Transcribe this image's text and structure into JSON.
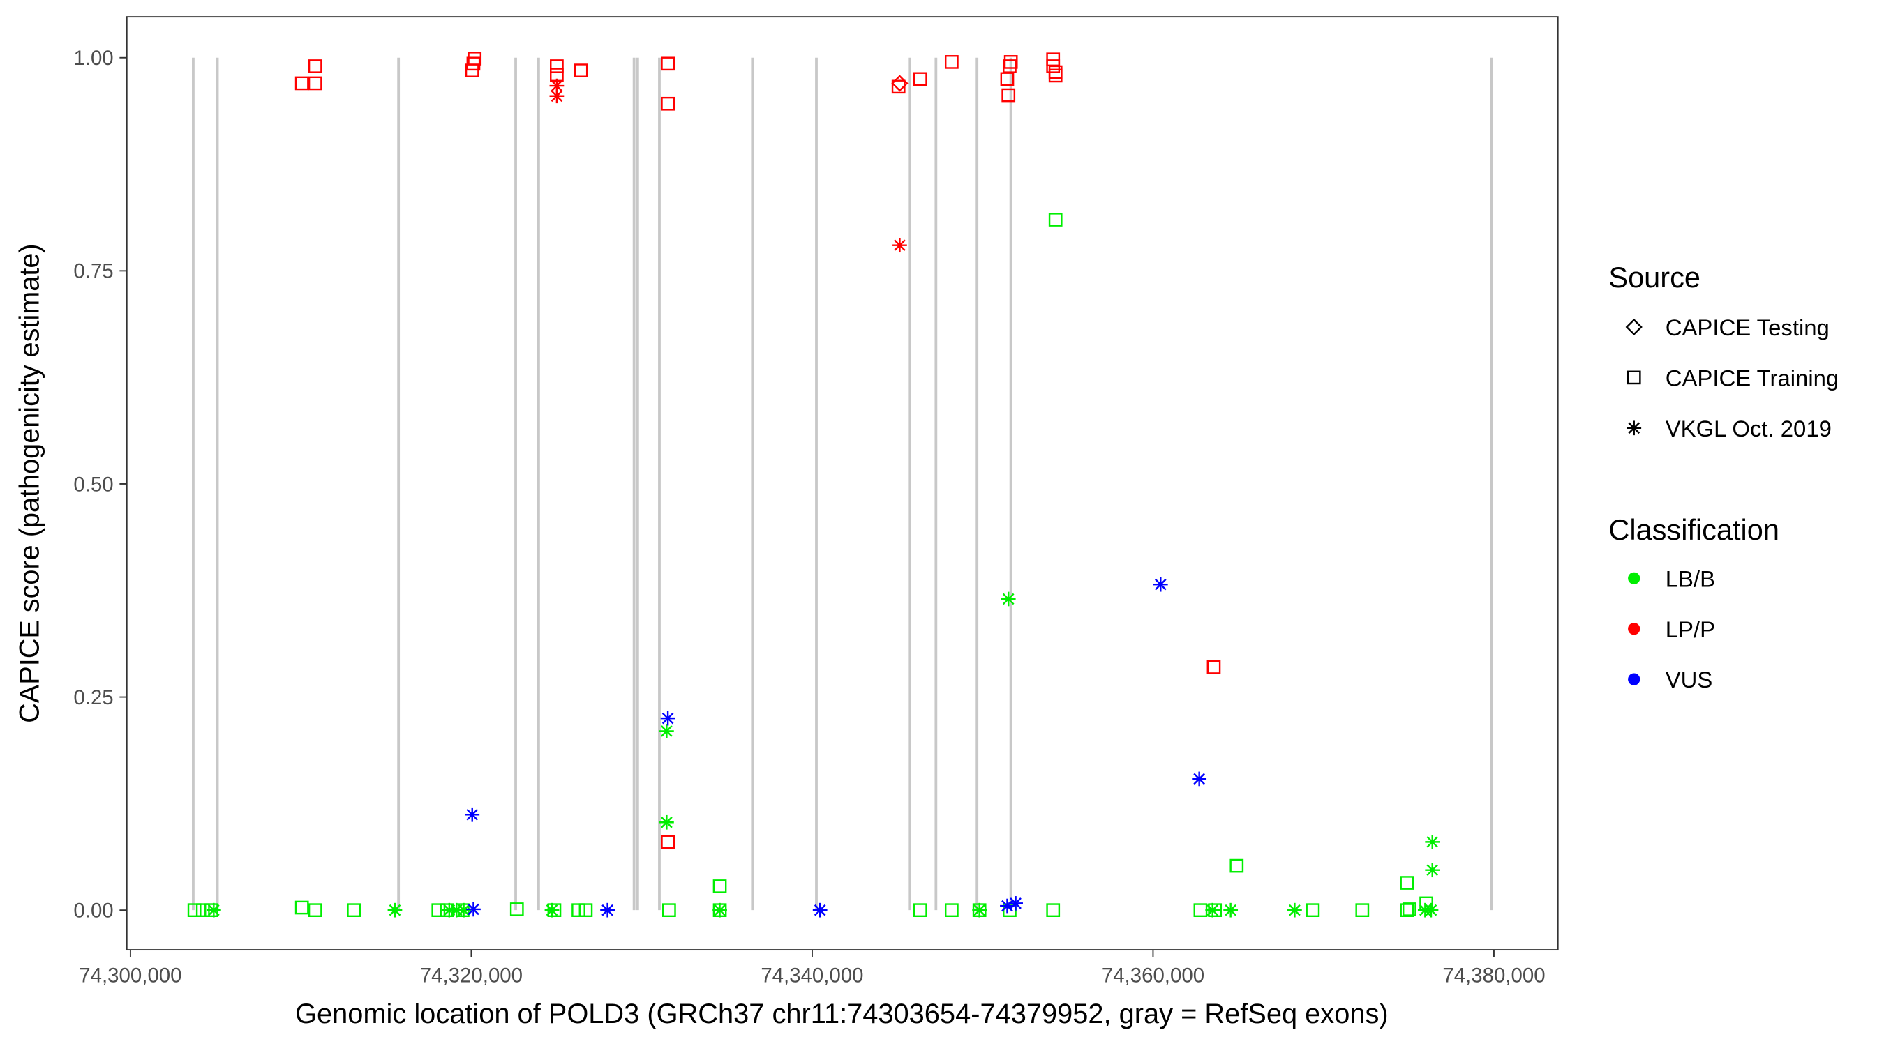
{
  "chart_data": {
    "type": "scatter",
    "title": "",
    "xlabel": "Genomic location of POLD3 (GRCh37 chr11:74303654-74379952, gray = RefSeq exons)",
    "ylabel": "CAPICE score (pathogenicity estimate)",
    "xlim": [
      74299800,
      74383800
    ],
    "ylim": [
      -0.045,
      1.05
    ],
    "x_ticks": [
      74300000,
      74320000,
      74340000,
      74360000,
      74380000
    ],
    "x_tick_labels": [
      "74,300,000",
      "74,320,000",
      "74,340,000",
      "74,360,000",
      "74,380,000"
    ],
    "y_ticks": [
      0,
      0.25,
      0.5,
      0.75,
      1.0
    ],
    "y_tick_labels": [
      "0.00",
      "0.25",
      "0.50",
      "0.75",
      "1.00"
    ],
    "grid": false,
    "exons": [
      74303685,
      74305102,
      74315731,
      74322604,
      74323950,
      74329548,
      74329761,
      74331036,
      74336493,
      74340248,
      74345704,
      74347263,
      74349672,
      74351656,
      74379858
    ],
    "exon_color": "#c8c8c8",
    "legend_placement": "right",
    "legend": {
      "source_title": "Source",
      "sources": [
        "CAPICE Testing",
        "CAPICE Training",
        "VKGL Oct. 2019"
      ],
      "source_shapes": [
        "diamond",
        "square",
        "asterisk"
      ],
      "classification_title": "Classification",
      "classes": [
        "LB/B",
        "LP/P",
        "VUS"
      ],
      "class_colors": {
        "LB/B": "#00ee00",
        "LP/P": "#ff0000",
        "VUS": "#0000ff"
      }
    },
    "points": [
      [
        74310062,
        0.97,
        "LP/P",
        "CAPICE Training"
      ],
      [
        74310842,
        0.99,
        "LP/P",
        "CAPICE Training"
      ],
      [
        74310842,
        0.97,
        "LP/P",
        "CAPICE Training"
      ],
      [
        74320053,
        0.985,
        "LP/P",
        "CAPICE Training"
      ],
      [
        74320124,
        0.993,
        "LP/P",
        "CAPICE Training"
      ],
      [
        74320195,
        0.999,
        "LP/P",
        "CAPICE Training"
      ],
      [
        74325014,
        0.99,
        "LP/P",
        "CAPICE Training"
      ],
      [
        74325014,
        0.98,
        "LP/P",
        "CAPICE Training"
      ],
      [
        74326431,
        0.985,
        "LP/P",
        "CAPICE Training"
      ],
      [
        74331533,
        0.993,
        "LP/P",
        "CAPICE Training"
      ],
      [
        74331533,
        0.946,
        "LP/P",
        "CAPICE Training"
      ],
      [
        74331533,
        0.08,
        "LP/P",
        "CAPICE Training"
      ],
      [
        74345067,
        0.966,
        "LP/P",
        "CAPICE Training"
      ],
      [
        74346343,
        0.975,
        "LP/P",
        "CAPICE Training"
      ],
      [
        74348185,
        0.995,
        "LP/P",
        "CAPICE Training"
      ],
      [
        74351444,
        0.975,
        "LP/P",
        "CAPICE Training"
      ],
      [
        74351586,
        0.99,
        "LP/P",
        "CAPICE Training"
      ],
      [
        74351657,
        0.995,
        "LP/P",
        "CAPICE Training"
      ],
      [
        74351515,
        0.956,
        "LP/P",
        "CAPICE Training"
      ],
      [
        74354136,
        0.998,
        "LP/P",
        "CAPICE Training"
      ],
      [
        74354136,
        0.99,
        "LP/P",
        "CAPICE Training"
      ],
      [
        74354279,
        0.983,
        "LP/P",
        "CAPICE Training"
      ],
      [
        74354279,
        0.979,
        "LP/P",
        "CAPICE Training"
      ],
      [
        74363562,
        0.285,
        "LP/P",
        "CAPICE Training"
      ],
      [
        74345138,
        0.97,
        "LP/P",
        "CAPICE Testing"
      ],
      [
        74325014,
        0.955,
        "LP/P",
        "VKGL Oct. 2019"
      ],
      [
        74325014,
        0.967,
        "LP/P",
        "VKGL Oct. 2019"
      ],
      [
        74345138,
        0.78,
        "LP/P",
        "VKGL Oct. 2019"
      ],
      [
        74303756,
        0.0,
        "LB/B",
        "CAPICE Training"
      ],
      [
        74304252,
        0.0,
        "LB/B",
        "CAPICE Training"
      ],
      [
        74304748,
        0.0,
        "LB/B",
        "CAPICE Training"
      ],
      [
        74310062,
        0.003,
        "LB/B",
        "CAPICE Training"
      ],
      [
        74310842,
        0.0,
        "LB/B",
        "CAPICE Training"
      ],
      [
        74313109,
        0.0,
        "LB/B",
        "CAPICE Training"
      ],
      [
        74318069,
        0.0,
        "LB/B",
        "CAPICE Training"
      ],
      [
        74318565,
        0.0,
        "LB/B",
        "CAPICE Training"
      ],
      [
        74319487,
        0.0,
        "LB/B",
        "CAPICE Training"
      ],
      [
        74322675,
        0.001,
        "LB/B",
        "CAPICE Training"
      ],
      [
        74324872,
        0.0,
        "LB/B",
        "CAPICE Training"
      ],
      [
        74326289,
        0.0,
        "LB/B",
        "CAPICE Training"
      ],
      [
        74326714,
        0.0,
        "LB/B",
        "CAPICE Training"
      ],
      [
        74331604,
        0.0,
        "LB/B",
        "CAPICE Training"
      ],
      [
        74334580,
        0.0,
        "LB/B",
        "CAPICE Training"
      ],
      [
        74334580,
        0.028,
        "LB/B",
        "CAPICE Training"
      ],
      [
        74346343,
        0.0,
        "LB/B",
        "CAPICE Training"
      ],
      [
        74348185,
        0.0,
        "LB/B",
        "CAPICE Training"
      ],
      [
        74349815,
        0.0,
        "LB/B",
        "CAPICE Training"
      ],
      [
        74351586,
        0.0,
        "LB/B",
        "CAPICE Training"
      ],
      [
        74354136,
        0.0,
        "LB/B",
        "CAPICE Training"
      ],
      [
        74354279,
        0.81,
        "LB/B",
        "CAPICE Training"
      ],
      [
        74362782,
        0.0,
        "LB/B",
        "CAPICE Training"
      ],
      [
        74363632,
        0.0,
        "LB/B",
        "CAPICE Training"
      ],
      [
        74364907,
        0.052,
        "LB/B",
        "CAPICE Training"
      ],
      [
        74369372,
        0.0,
        "LB/B",
        "CAPICE Training"
      ],
      [
        74372277,
        0.0,
        "LB/B",
        "CAPICE Training"
      ],
      [
        74374899,
        0.0,
        "LB/B",
        "CAPICE Training"
      ],
      [
        74375041,
        0.001,
        "LB/B",
        "CAPICE Training"
      ],
      [
        74374899,
        0.032,
        "LB/B",
        "CAPICE Training"
      ],
      [
        74376033,
        0.008,
        "LB/B",
        "CAPICE Training"
      ],
      [
        74304889,
        0.0,
        "LB/B",
        "VKGL Oct. 2019"
      ],
      [
        74315518,
        0.0,
        "LB/B",
        "VKGL Oct. 2019"
      ],
      [
        74318707,
        0.0,
        "LB/B",
        "VKGL Oct. 2019"
      ],
      [
        74319132,
        0.0,
        "LB/B",
        "VKGL Oct. 2019"
      ],
      [
        74319557,
        0.0,
        "LB/B",
        "VKGL Oct. 2019"
      ],
      [
        74324730,
        0.0,
        "LB/B",
        "VKGL Oct. 2019"
      ],
      [
        74334580,
        0.0,
        "LB/B",
        "VKGL Oct. 2019"
      ],
      [
        74349815,
        0.0,
        "LB/B",
        "VKGL Oct. 2019"
      ],
      [
        74363491,
        0.0,
        "LB/B",
        "VKGL Oct. 2019"
      ],
      [
        74364553,
        0.0,
        "LB/B",
        "VKGL Oct. 2019"
      ],
      [
        74368309,
        0.0,
        "LB/B",
        "VKGL Oct. 2019"
      ],
      [
        74375962,
        0.0,
        "LB/B",
        "VKGL Oct. 2019"
      ],
      [
        74376316,
        0.0,
        "LB/B",
        "VKGL Oct. 2019"
      ],
      [
        74331462,
        0.21,
        "LB/B",
        "VKGL Oct. 2019"
      ],
      [
        74331462,
        0.103,
        "LB/B",
        "VKGL Oct. 2019"
      ],
      [
        74351515,
        0.365,
        "LB/B",
        "VKGL Oct. 2019"
      ],
      [
        74376387,
        0.08,
        "LB/B",
        "VKGL Oct. 2019"
      ],
      [
        74376387,
        0.047,
        "LB/B",
        "VKGL Oct. 2019"
      ],
      [
        74320053,
        0.112,
        "VUS",
        "VKGL Oct. 2019"
      ],
      [
        74320124,
        0.001,
        "VUS",
        "VKGL Oct. 2019"
      ],
      [
        74327990,
        0.0,
        "VUS",
        "VKGL Oct. 2019"
      ],
      [
        74331533,
        0.225,
        "VUS",
        "VKGL Oct. 2019"
      ],
      [
        74340461,
        0.0,
        "VUS",
        "VKGL Oct. 2019"
      ],
      [
        74351444,
        0.005,
        "VUS",
        "VKGL Oct. 2019"
      ],
      [
        74351940,
        0.008,
        "VUS",
        "VKGL Oct. 2019"
      ],
      [
        74360444,
        0.382,
        "VUS",
        "VKGL Oct. 2019"
      ],
      [
        74362711,
        0.154,
        "VUS",
        "VKGL Oct. 2019"
      ]
    ]
  }
}
